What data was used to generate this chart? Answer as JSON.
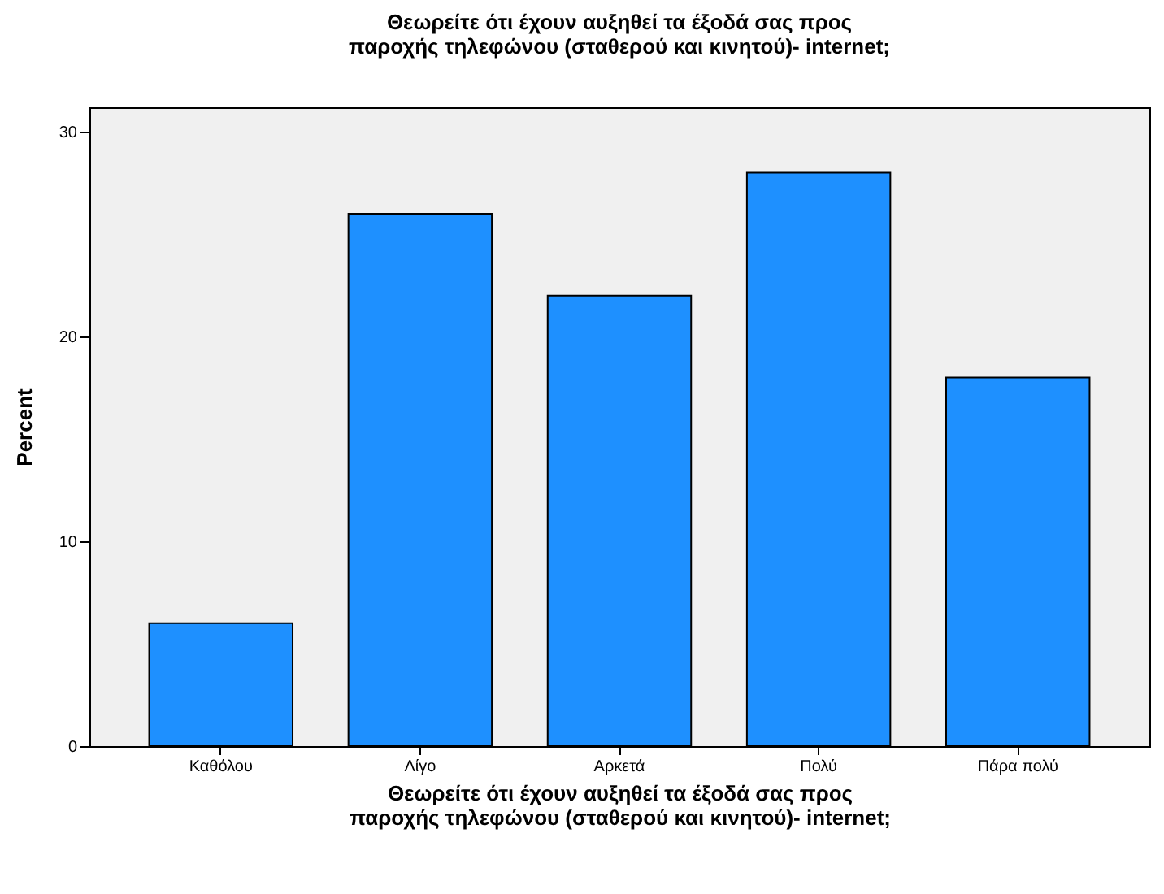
{
  "chart_data": {
    "type": "bar",
    "title": "Θεωρείτε ότι έχουν αυξηθεί τα έξοδά σας προς παροχής τηλεφώνου (σταθερού και κινητού)- internet;",
    "xlabel": "Θεωρείτε ότι έχουν αυξηθεί τα έξοδά σας προς παροχής τηλεφώνου (σταθερού και κινητού)- internet;",
    "ylabel": "Percent",
    "categories": [
      "Καθόλου",
      "Λίγο",
      "Αρκετά",
      "Πολύ",
      "Πάρα πολύ"
    ],
    "values": [
      6,
      26,
      22,
      28,
      18
    ],
    "color": "#1e90ff",
    "ylim": [
      0,
      31.2
    ],
    "yticks": [
      0,
      10,
      20,
      30
    ],
    "grid": false
  }
}
